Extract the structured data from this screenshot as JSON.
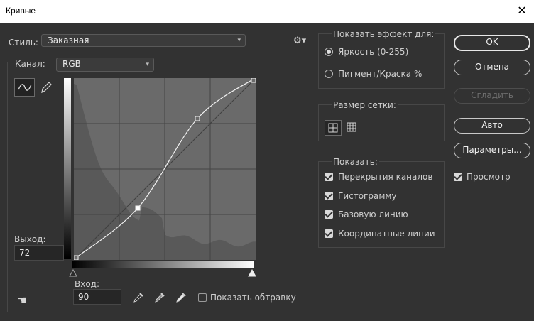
{
  "window": {
    "title": "Кривые",
    "close_glyph": "✕"
  },
  "style": {
    "label": "Стиль:",
    "value": "Заказная"
  },
  "channel": {
    "label": "Канал:",
    "value": "RGB"
  },
  "output": {
    "label": "Выход:",
    "value": "72"
  },
  "input": {
    "label": "Вход:",
    "value": "90"
  },
  "show_clipping": {
    "label": "Показать обтравку",
    "checked": false
  },
  "show_amount": {
    "title": "Показать эффект для:",
    "options": [
      {
        "label": "Яркость (0-255)",
        "selected": true
      },
      {
        "label": "Пигмент/Краска %",
        "selected": false
      }
    ]
  },
  "grid_size": {
    "title": "Размер сетки:"
  },
  "show": {
    "title": "Показать:",
    "options": [
      {
        "label": "Перекрытия каналов",
        "checked": true
      },
      {
        "label": "Гистограмму",
        "checked": true
      },
      {
        "label": "Базовую линию",
        "checked": true
      },
      {
        "label": "Координатные линии",
        "checked": true
      }
    ]
  },
  "buttons": {
    "ok": "OK",
    "cancel": "Отмена",
    "smooth": "Сгладить",
    "auto": "Авто",
    "options": "Параметры..."
  },
  "preview": {
    "label": "Просмотр",
    "checked": true
  },
  "curve": {
    "points": [
      [
        0,
        0
      ],
      [
        90,
        72
      ],
      [
        174,
        198
      ],
      [
        255,
        255
      ]
    ]
  },
  "colors": {
    "background": "#323232",
    "graph_bg": "#6a6a6a",
    "histogram": "#595959"
  }
}
